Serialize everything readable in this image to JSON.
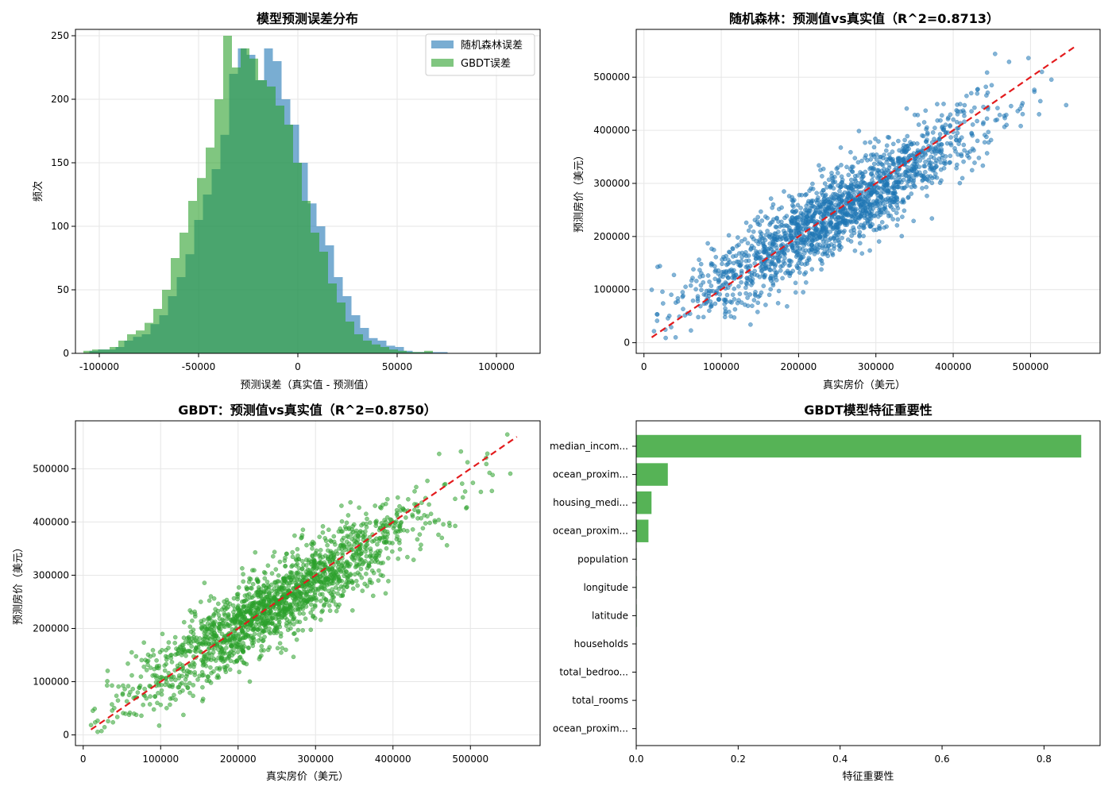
{
  "colors": {
    "rf": "#1f77b4",
    "gbdt": "#2ca02c",
    "ref_line": "#e31a1c",
    "bar": "#56b356",
    "grid": "#e6e6e6"
  },
  "chart_data": [
    {
      "type": "histogram",
      "title": "模型预测误差分布",
      "xlabel": "预测误差（真实值 - 预测值）",
      "ylabel": "频次",
      "xlim": [
        -112000,
        122000
      ],
      "ylim": [
        0,
        255
      ],
      "xticks": [
        -100000,
        -50000,
        0,
        50000,
        100000
      ],
      "xtick_labels": [
        "-100000",
        "-50000",
        "0",
        "50000",
        "100000"
      ],
      "yticks": [
        0,
        50,
        100,
        150,
        200,
        250
      ],
      "ytick_labels": [
        "0",
        "50",
        "100",
        "150",
        "200",
        "250"
      ],
      "grid": true,
      "legend_position": "top-right",
      "series": [
        {
          "name": "随机森林误差",
          "color": "#1f77b4",
          "alpha": 0.6,
          "bin_start": -105000,
          "bin_width": 4400,
          "values": [
            2,
            3,
            3,
            5,
            10,
            13,
            15,
            23,
            30,
            45,
            60,
            78,
            105,
            125,
            145,
            172,
            220,
            240,
            235,
            215,
            240,
            230,
            200,
            180,
            150,
            118,
            100,
            85,
            60,
            45,
            30,
            20,
            12,
            10,
            6,
            5,
            2,
            1,
            1,
            1,
            1,
            0,
            0,
            0,
            0
          ]
        },
        {
          "name": "GBDT误差",
          "color": "#2ca02c",
          "alpha": 0.6,
          "bin_start": -108000,
          "bin_width": 4400,
          "values": [
            2,
            3,
            3,
            5,
            10,
            15,
            18,
            24,
            35,
            50,
            75,
            95,
            120,
            138,
            162,
            200,
            250,
            225,
            240,
            232,
            215,
            210,
            195,
            180,
            150,
            120,
            95,
            80,
            55,
            40,
            25,
            15,
            10,
            7,
            5,
            3,
            2,
            1,
            1,
            2,
            0,
            0,
            0,
            0,
            0
          ]
        }
      ]
    },
    {
      "type": "scatter",
      "title": "随机森林：预测值vs真实值（R^2=0.8713）",
      "xlabel": "真实房价（美元）",
      "ylabel": "预测房价（美元）",
      "xlim": [
        -10000,
        590000
      ],
      "ylim": [
        -20000,
        590000
      ],
      "xticks": [
        0,
        100000,
        200000,
        300000,
        400000,
        500000
      ],
      "xtick_labels": [
        "0",
        "100000",
        "200000",
        "300000",
        "400000",
        "500000"
      ],
      "yticks": [
        0,
        100000,
        200000,
        300000,
        400000,
        500000
      ],
      "ytick_labels": [
        "0",
        "100000",
        "200000",
        "300000",
        "400000",
        "500000"
      ],
      "grid": true,
      "series": [
        {
          "color": "#1f77b4",
          "alpha": 0.55,
          "n_points": 1800,
          "x_range": [
            10000,
            560000
          ],
          "slope": 0.87,
          "intercept": 30000,
          "noise_sd": 38000,
          "seed": 7
        }
      ],
      "reference_line": {
        "x": [
          10000,
          560000
        ],
        "y": [
          10000,
          560000
        ],
        "color": "#e31a1c",
        "style": "dashed"
      }
    },
    {
      "type": "scatter",
      "title": "GBDT：预测值vs真实值（R^2=0.8750）",
      "xlabel": "真实房价（美元）",
      "ylabel": "预测房价（美元）",
      "xlim": [
        -10000,
        590000
      ],
      "ylim": [
        -20000,
        590000
      ],
      "xticks": [
        0,
        100000,
        200000,
        300000,
        400000,
        500000
      ],
      "xtick_labels": [
        "0",
        "100000",
        "200000",
        "300000",
        "400000",
        "500000"
      ],
      "yticks": [
        0,
        100000,
        200000,
        300000,
        400000,
        500000
      ],
      "ytick_labels": [
        "0",
        "100000",
        "200000",
        "300000",
        "400000",
        "500000"
      ],
      "grid": true,
      "series": [
        {
          "color": "#2ca02c",
          "alpha": 0.55,
          "n_points": 1800,
          "x_range": [
            10000,
            560000
          ],
          "slope": 0.88,
          "intercept": 28000,
          "noise_sd": 36000,
          "seed": 13
        }
      ],
      "reference_line": {
        "x": [
          10000,
          560000
        ],
        "y": [
          10000,
          560000
        ],
        "color": "#e31a1c",
        "style": "dashed"
      }
    },
    {
      "type": "bar",
      "orientation": "horizontal",
      "title": "GBDT模型特征重要性",
      "xlabel": "特征重要性",
      "ylabel": "",
      "xlim": [
        0,
        0.91
      ],
      "xticks": [
        0,
        0.2,
        0.4,
        0.6,
        0.8
      ],
      "xtick_labels": [
        "0.0",
        "0.2",
        "0.4",
        "0.6",
        "0.8"
      ],
      "grid": false,
      "categories": [
        "median_incom...",
        "ocean_proxim...",
        "housing_medi...",
        "ocean_proxim...",
        "population",
        "longitude",
        "latitude",
        "households",
        "total_bedroo...",
        "total_rooms",
        "ocean_proxim..."
      ],
      "values": [
        0.873,
        0.062,
        0.03,
        0.024,
        0.001,
        0.001,
        0.001,
        0.0005,
        0.0005,
        0.0005,
        0.0003
      ],
      "color": "#56b356"
    }
  ]
}
